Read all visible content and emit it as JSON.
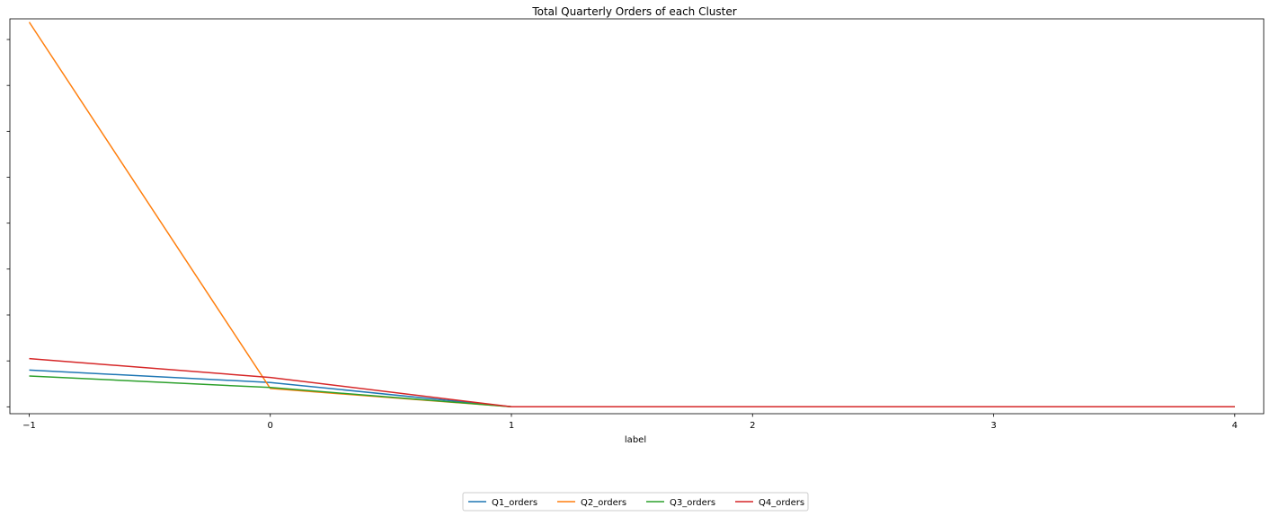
{
  "chart_data": {
    "type": "line",
    "title": "Total Quarterly Orders of each Cluster",
    "xlabel": "label",
    "ylabel": "",
    "x": [
      -1,
      0,
      1,
      2,
      3,
      4
    ],
    "x_tick_labels": [
      "−1",
      "0",
      "1",
      "2",
      "3",
      "4"
    ],
    "xlim": [
      -1.08,
      4.12
    ],
    "ylim": [
      -0.15,
      8.45
    ],
    "y_ticks": [
      0,
      1,
      2,
      3,
      4,
      5,
      6,
      7,
      8
    ],
    "y_tick_labels_visible": false,
    "grid": false,
    "legend_position": "bottom-center",
    "series": [
      {
        "name": "Q1_orders",
        "color": "#1f77b4",
        "values": [
          0.8,
          0.53,
          0,
          0,
          0,
          0
        ]
      },
      {
        "name": "Q2_orders",
        "color": "#ff7f0e",
        "values": [
          8.38,
          0.4,
          0,
          0,
          0,
          0
        ]
      },
      {
        "name": "Q3_orders",
        "color": "#2ca02c",
        "values": [
          0.67,
          0.42,
          0,
          0,
          0,
          0
        ]
      },
      {
        "name": "Q4_orders",
        "color": "#d62728",
        "values": [
          1.05,
          0.64,
          0,
          0,
          0,
          0
        ]
      }
    ]
  }
}
